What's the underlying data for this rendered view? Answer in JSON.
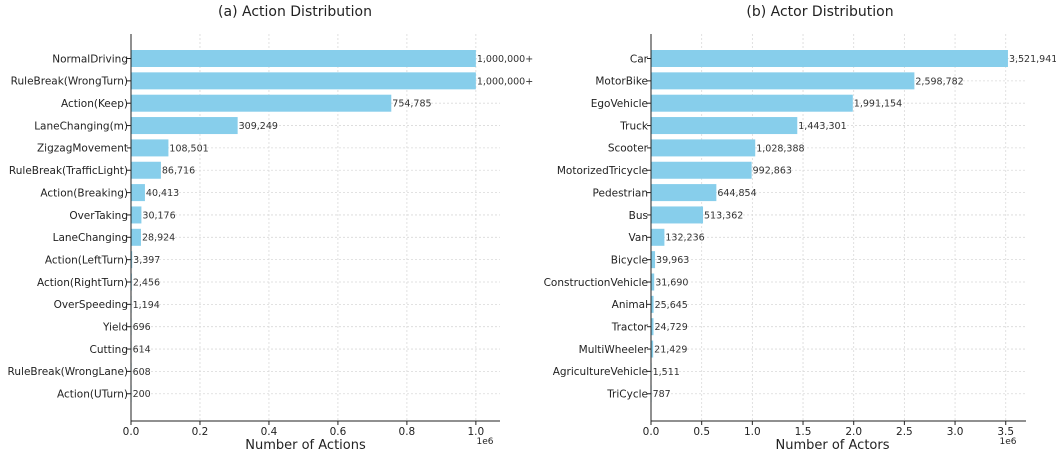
{
  "chart_data": [
    {
      "type": "bar",
      "orientation": "horizontal",
      "title": "(a) Action Distribution",
      "xlabel": "Number of Actions",
      "ylabel": "",
      "xlim": [
        0,
        1.07
      ],
      "x_multiplier_label": "1e6",
      "xticks": [
        "0.0",
        "0.2",
        "0.4",
        "0.6",
        "0.8",
        "1.0"
      ],
      "grid": true,
      "bar_color": "#87ceeb",
      "categories": [
        "NormalDriving",
        "RuleBreak(WrongTurn)",
        "Action(Keep)",
        "LaneChanging(m)",
        "ZigzagMovement",
        "RuleBreak(TrafficLight)",
        "Action(Breaking)",
        "OverTaking",
        "LaneChanging",
        "Action(LeftTurn)",
        "Action(RightTurn)",
        "OverSpeeding",
        "Yield",
        "Cutting",
        "RuleBreak(WrongLane)",
        "Action(UTurn)"
      ],
      "values": [
        1.0,
        1.0,
        0.754785,
        0.309249,
        0.108501,
        0.086716,
        0.040413,
        0.030176,
        0.028924,
        0.003397,
        0.002456,
        0.001194,
        0.000696,
        0.000614,
        0.000608,
        0.0002
      ],
      "value_labels": [
        "1,000,000+",
        "1,000,000+",
        "754,785",
        "309,249",
        "108,501",
        "86,716",
        "40,413",
        "30,176",
        "28,924",
        "3,397",
        "2,456",
        "1,194",
        "696",
        "614",
        "608",
        "200"
      ]
    },
    {
      "type": "bar",
      "orientation": "horizontal",
      "title": "(b) Actor Distribution",
      "xlabel": "Number of Actors",
      "ylabel": "",
      "xlim": [
        0,
        3.7
      ],
      "x_multiplier_label": "1e6",
      "xticks": [
        "0.0",
        "0.5",
        "1.0",
        "1.5",
        "2.0",
        "2.5",
        "3.0",
        "3.5"
      ],
      "grid": true,
      "bar_color": "#87ceeb",
      "categories": [
        "Car",
        "MotorBike",
        "EgoVehicle",
        "Truck",
        "Scooter",
        "MotorizedTricycle",
        "Pedestrian",
        "Bus",
        "Van",
        "Bicycle",
        "ConstructionVehicle",
        "Animal",
        "Tractor",
        "MultiWheeler",
        "AgricultureVehicle",
        "TriCycle"
      ],
      "values": [
        3.521941,
        2.598782,
        1.991154,
        1.443301,
        1.028388,
        0.992863,
        0.644854,
        0.513362,
        0.132236,
        0.039963,
        0.03169,
        0.025645,
        0.024729,
        0.021429,
        0.001511,
        0.000787
      ],
      "value_labels": [
        "3,521,941",
        "2,598,782",
        "1,991,154",
        "1,443,301",
        "1,028,388",
        "992,863",
        "644,854",
        "513,362",
        "132,236",
        "39,963",
        "31,690",
        "25,645",
        "24,729",
        "21,429",
        "1,511",
        "787"
      ]
    }
  ]
}
